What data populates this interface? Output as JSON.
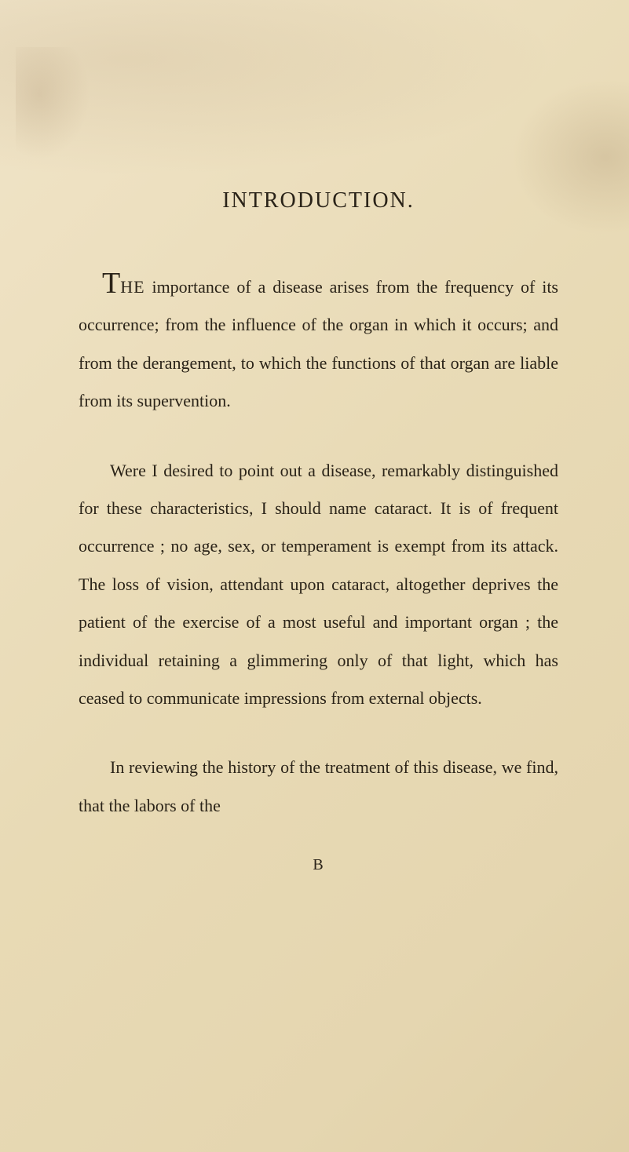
{
  "title": "INTRODUCTION.",
  "paragraphs": {
    "p1_dropcap": "T",
    "p1_smallcaps": "HE",
    "p1_rest": " importance of a disease arises from the frequency of its occurrence; from the in­fluence of the organ in which it occurs; and from the derangement, to which the functions of that organ are liable from its supervention.",
    "p2": "Were I desired to point out a disease, re­markably distinguished for these characteristics, I should name cataract. It is of frequent occur­rence ; no age, sex, or temperament is exempt from its attack. The loss of vision, attendant upon cataract, altogether deprives the patient of the exercise of a most useful and important organ ; the individual retaining a glimmering only of that light, which has ceased to com­municate impressions from external objects.",
    "p3": "In reviewing the history of the treatment of this disease, we find, that the labors of the"
  },
  "signature": "B",
  "colors": {
    "text": "#2a2318",
    "background": "#ebe0c0"
  },
  "typography": {
    "title_fontsize": 28,
    "body_fontsize": 22,
    "dropcap_fontsize": 38,
    "line_height": 2.2,
    "font_family": "Georgia, Times New Roman, serif"
  }
}
